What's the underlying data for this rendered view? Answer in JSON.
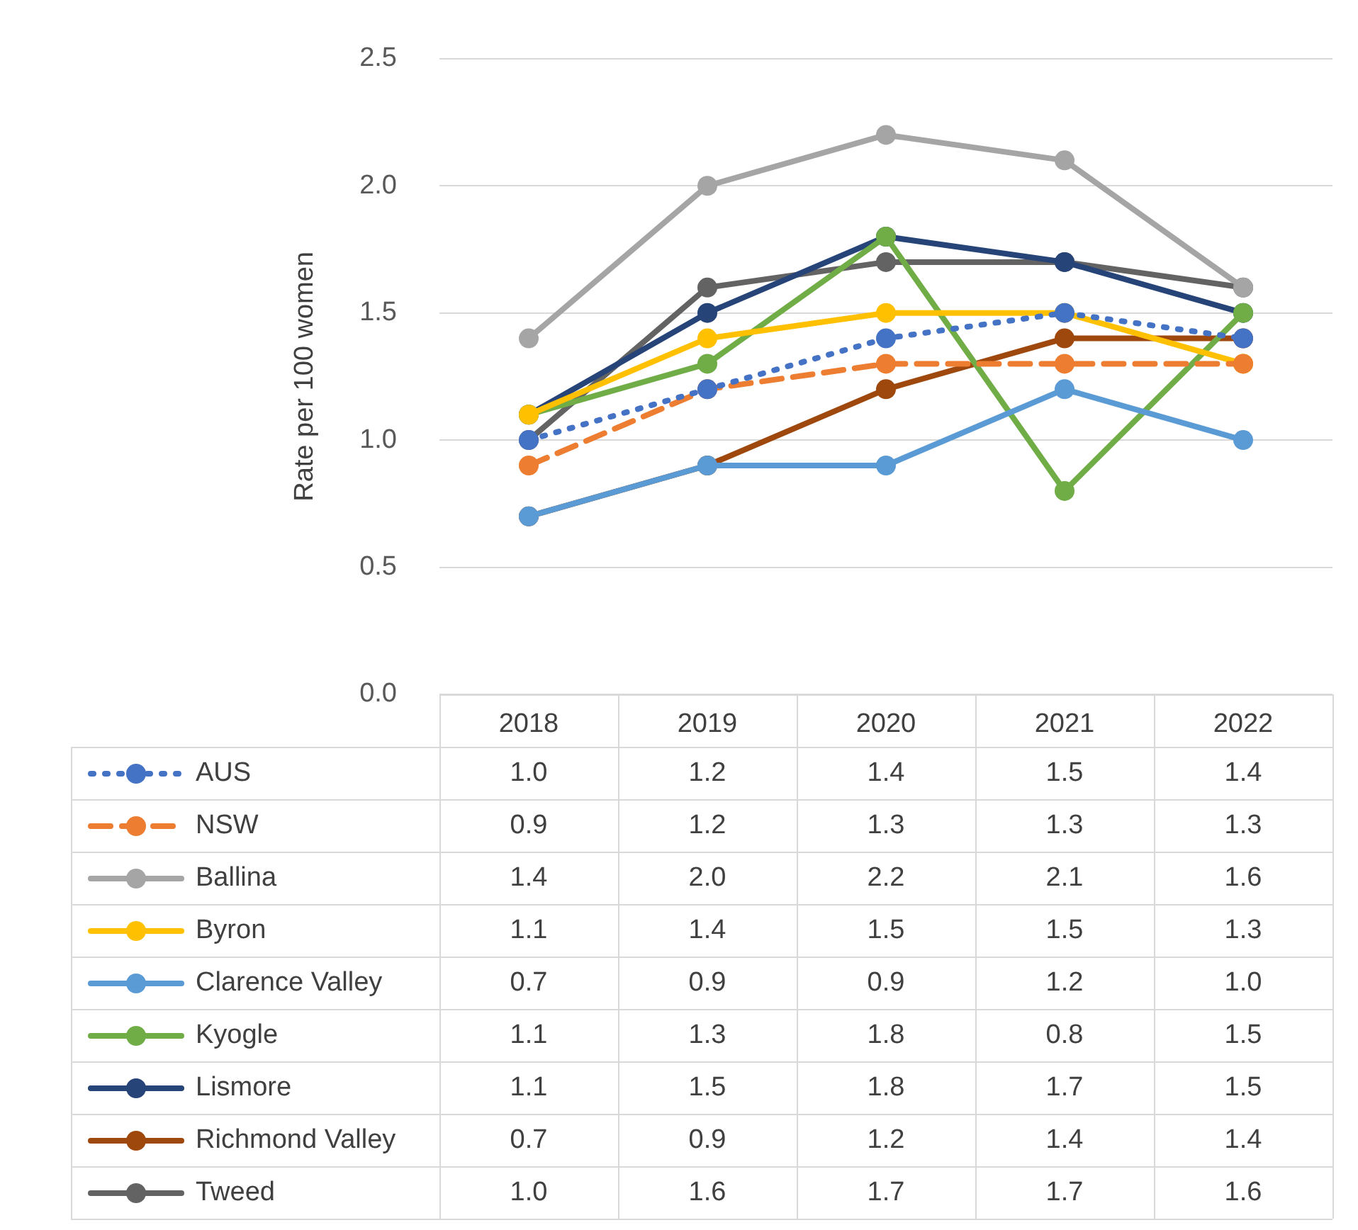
{
  "chart_data": {
    "type": "line",
    "ylabel": "Rate per 100 women",
    "categories": [
      "2018",
      "2019",
      "2020",
      "2021",
      "2022"
    ],
    "ylim": [
      0,
      2.5
    ],
    "yticks": [
      {
        "value": 0,
        "label": "0.0"
      },
      {
        "value": 0.5,
        "label": "0.5"
      },
      {
        "value": 1,
        "label": "1.0"
      },
      {
        "value": 1.5,
        "label": "1.5"
      },
      {
        "value": 2,
        "label": "2.0"
      },
      {
        "value": 2.5,
        "label": "2.5"
      }
    ],
    "grid": "y",
    "legend": "bottom left",
    "marker": "circle",
    "series": [
      {
        "name": "AUS",
        "color": "#4472c4",
        "line_style": "dotted",
        "values": [
          1.0,
          1.2,
          1.4,
          1.5,
          1.4
        ],
        "value_labels": [
          "1.0",
          "1.2",
          "1.4",
          "1.5",
          "1.4"
        ]
      },
      {
        "name": "NSW",
        "color": "#ed7d31",
        "line_style": "dashed",
        "values": [
          0.9,
          1.2,
          1.3,
          1.3,
          1.3
        ],
        "value_labels": [
          "0.9",
          "1.2",
          "1.3",
          "1.3",
          "1.3"
        ]
      },
      {
        "name": "Ballina",
        "color": "#a5a5a5",
        "line_style": "solid",
        "values": [
          1.4,
          2.0,
          2.2,
          2.1,
          1.6
        ],
        "value_labels": [
          "1.4",
          "2.0",
          "2.2",
          "2.1",
          "1.6"
        ]
      },
      {
        "name": "Byron",
        "color": "#ffc000",
        "line_style": "solid",
        "values": [
          1.1,
          1.4,
          1.5,
          1.5,
          1.3
        ],
        "value_labels": [
          "1.1",
          "1.4",
          "1.5",
          "1.5",
          "1.3"
        ]
      },
      {
        "name": "Clarence Valley",
        "color": "#5b9bd5",
        "line_style": "solid",
        "values": [
          0.7,
          0.9,
          0.9,
          1.2,
          1.0
        ],
        "value_labels": [
          "0.7",
          "0.9",
          "0.9",
          "1.2",
          "1.0"
        ]
      },
      {
        "name": "Kyogle",
        "color": "#70ad47",
        "line_style": "solid",
        "values": [
          1.1,
          1.3,
          1.8,
          0.8,
          1.5
        ],
        "value_labels": [
          "1.1",
          "1.3",
          "1.8",
          "0.8",
          "1.5"
        ]
      },
      {
        "name": "Lismore",
        "color": "#264478",
        "line_style": "solid",
        "values": [
          1.1,
          1.5,
          1.8,
          1.7,
          1.5
        ],
        "value_labels": [
          "1.1",
          "1.5",
          "1.8",
          "1.7",
          "1.5"
        ]
      },
      {
        "name": "Richmond Valley",
        "color": "#9e480e",
        "line_style": "solid",
        "values": [
          0.7,
          0.9,
          1.2,
          1.4,
          1.4
        ],
        "value_labels": [
          "0.7",
          "0.9",
          "1.2",
          "1.4",
          "1.4"
        ]
      },
      {
        "name": "Tweed",
        "color": "#636363",
        "line_style": "solid",
        "values": [
          1.0,
          1.6,
          1.7,
          1.7,
          1.6
        ],
        "value_labels": [
          "1.0",
          "1.6",
          "1.7",
          "1.7",
          "1.6"
        ]
      }
    ]
  }
}
